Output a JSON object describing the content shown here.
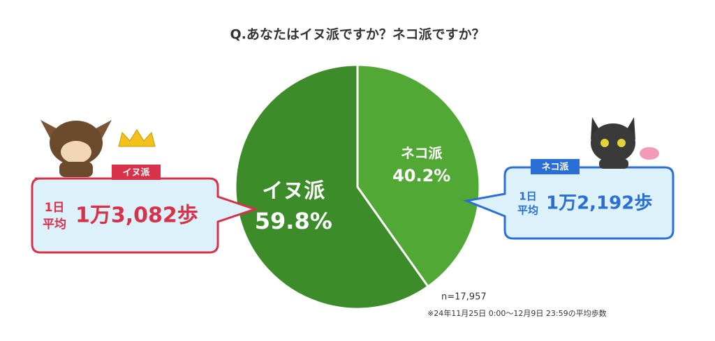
{
  "chart_data": {
    "type": "pie",
    "title": "Q.あなたはイヌ派ですか？ネコ派ですか？",
    "categories": [
      "イヌ派",
      "ネコ派"
    ],
    "values": [
      59.8,
      40.2
    ],
    "value_labels": [
      "59.8%",
      "40.2%"
    ],
    "colors": [
      "#3c8c2a",
      "#52a834"
    ],
    "n_label": "n=17,957",
    "note": "※24年11月25日 0:00〜12月9日 23:59の平均歩数"
  },
  "callouts": [
    {
      "badge": "イヌ派",
      "line1": "1日",
      "line2": "平均",
      "steps": "1万3,082歩"
    },
    {
      "badge": "ネコ派",
      "line1": "1日",
      "line2": "平均",
      "steps": "1万2,192歩"
    }
  ]
}
